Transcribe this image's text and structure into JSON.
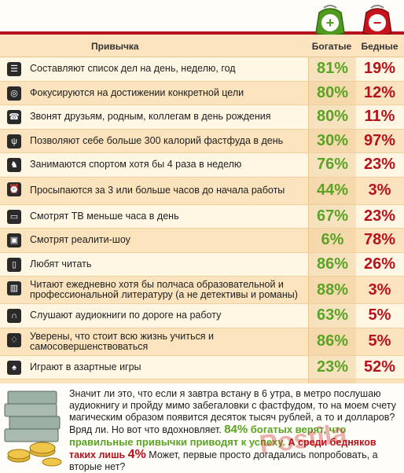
{
  "header": {
    "col_habit": "Привычка",
    "col_rich": "Богатые",
    "col_poor": "Бедные",
    "rich_sign": "+",
    "poor_sign": "−"
  },
  "rows": [
    {
      "icon": "list-icon",
      "glyph": "☰",
      "text": "Составляют список дел на день, неделю, год",
      "rich": "81%",
      "poor": "19%"
    },
    {
      "icon": "target-icon",
      "glyph": "◎",
      "text": "Фокусируются на достижении конкретной цели",
      "rich": "80%",
      "poor": "12%"
    },
    {
      "icon": "phone-icon",
      "glyph": "☎",
      "text": "Звонят друзьям, родным, коллегам в день рождения",
      "rich": "80%",
      "poor": "11%"
    },
    {
      "icon": "fork-icon",
      "glyph": "ψ",
      "text": "Позволяют себе больше 300 калорий фастфуда в день",
      "rich": "30%",
      "poor": "97%"
    },
    {
      "icon": "runner-icon",
      "glyph": "♞",
      "text": "Занимаются спортом хотя бы 4 раза в неделю",
      "rich": "76%",
      "poor": "23%"
    },
    {
      "icon": "alarm-clock-icon",
      "glyph": "⏰",
      "text": "Просыпаются за 3 или больше часов до начала работы",
      "rich": "44%",
      "poor": "3%"
    },
    {
      "icon": "tv-icon",
      "glyph": "▭",
      "text": "Смотрят ТВ меньше часа в день",
      "rich": "67%",
      "poor": "23%"
    },
    {
      "icon": "tv-show-icon",
      "glyph": "▣",
      "text": "Смотрят реалити-шоу",
      "rich": "6%",
      "poor": "78%"
    },
    {
      "icon": "book-icon",
      "glyph": "▯",
      "text": "Любят читать",
      "rich": "86%",
      "poor": "26%"
    },
    {
      "icon": "open-book-icon",
      "glyph": "▥",
      "text": "Читают ежедневно хотя бы полчаса образовательной и профессиональной литературу (а не детективы и романы)",
      "rich": "88%",
      "poor": "3%"
    },
    {
      "icon": "headphones-icon",
      "glyph": "∩",
      "text": "Слушают аудиокниги по дороге на работу",
      "rich": "63%",
      "poor": "5%"
    },
    {
      "icon": "graduation-cap-icon",
      "glyph": "♢",
      "text": "Уверены, что стоит всю жизнь учиться и самосовершенствоваться",
      "rich": "86%",
      "poor": "5%"
    },
    {
      "icon": "spade-icon",
      "glyph": "♠",
      "text": "Играют в азартные игры",
      "rich": "23%",
      "poor": "52%"
    },
    {
      "icon": "speech-bubble-icon",
      "glyph": "…",
      "text": "Говорят все, что у них на уме",
      "rich": "11%",
      "poor": "69%"
    }
  ],
  "footer": {
    "p1": "Значит ли это, что если я завтра встану в 6 утра, в метро послушаю аудиокнигу и пройду мимо забегаловки с фастфудом, то на моем счету магическим образом появится десяток тысяч рублей, а то и долларов? Вряд ли. Но вот что вдохновляет.",
    "pct1": "84%",
    "p2": "богатых верят, что правильные привычки приводят к успеху.",
    "p3": "А среди бедняков таких лишь",
    "pct2": "4%",
    "p4": "Может, первые просто догадались попробовать, а вторые нет?",
    "watermark": "Postila"
  },
  "colors": {
    "rich": "#5aa324",
    "poor": "#b5121b",
    "band": "#fbe3bd"
  }
}
